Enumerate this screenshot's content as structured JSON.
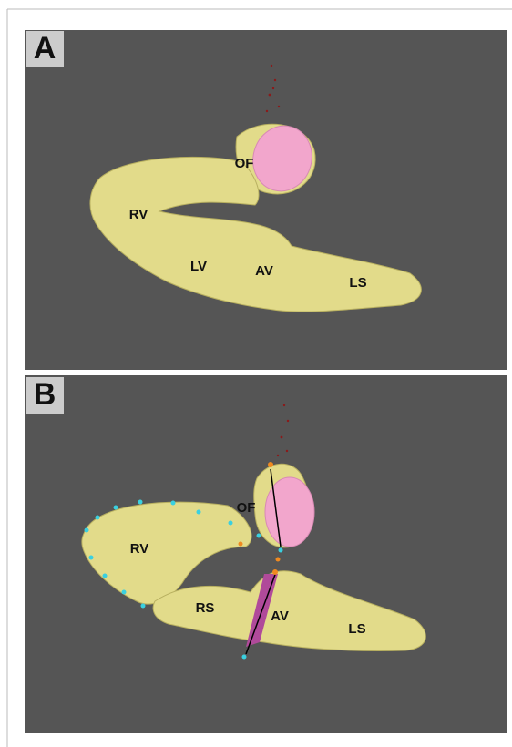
{
  "panels": [
    {
      "label": "A",
      "regions": [
        "OF",
        "RV",
        "LV",
        "AV",
        "LS"
      ]
    },
    {
      "label": "B",
      "regions": [
        "OF",
        "RV",
        "RS",
        "AV",
        "LS"
      ]
    }
  ]
}
